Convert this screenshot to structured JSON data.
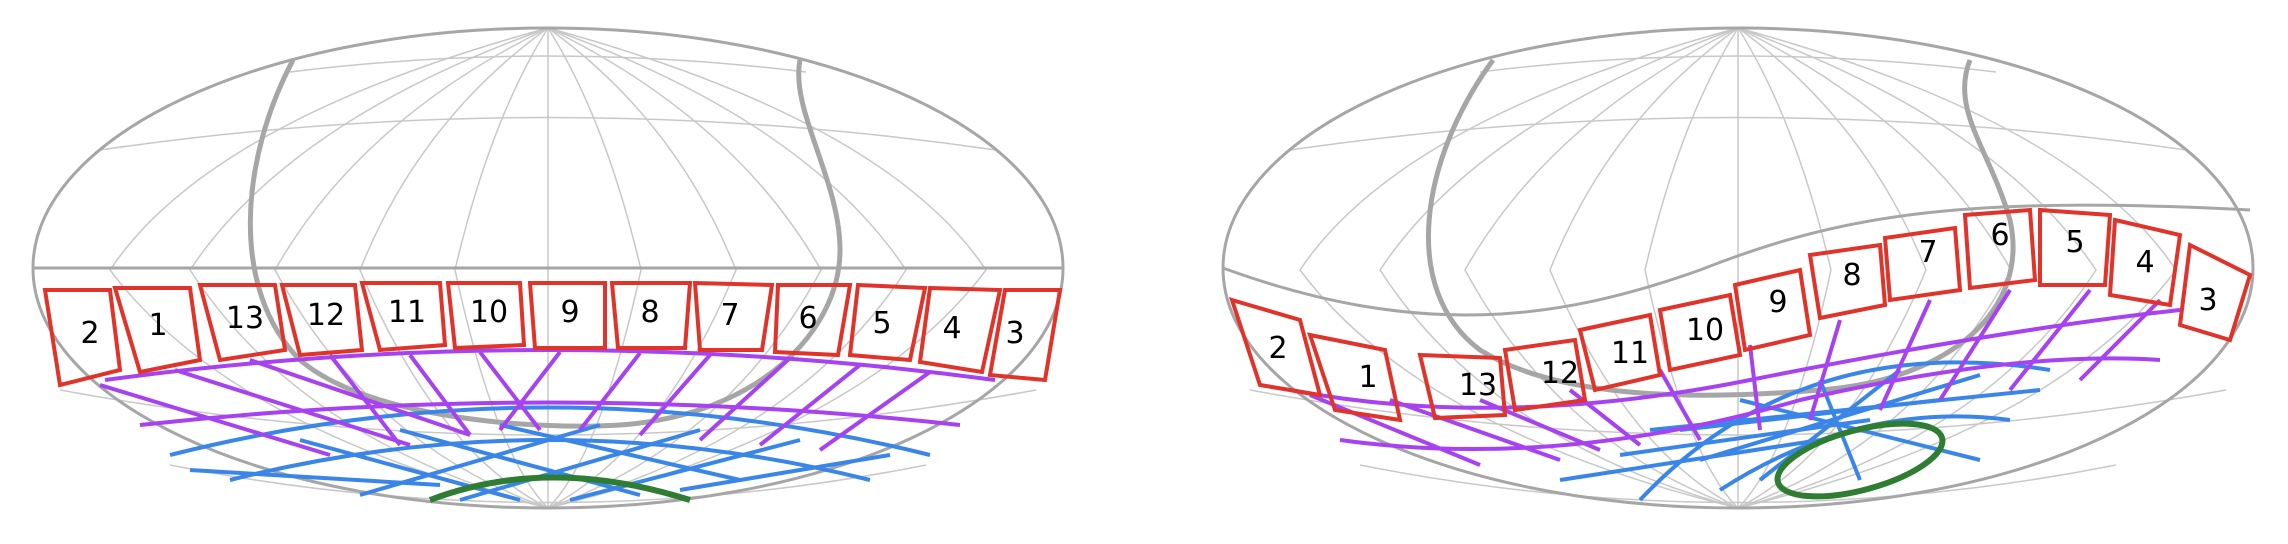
{
  "panels": [
    {
      "id": "left",
      "tile_numbers": [
        "2",
        "1",
        "13",
        "12",
        "11",
        "10",
        "9",
        "8",
        "7",
        "6",
        "5",
        "4",
        "3"
      ]
    },
    {
      "id": "right",
      "tile_numbers": [
        "2",
        "1",
        "13",
        "12",
        "11",
        "10",
        "9",
        "8",
        "7",
        "6",
        "5",
        "4",
        "3"
      ]
    }
  ],
  "colors": {
    "frame": "#a6a6a6",
    "grid": "#c8c8c8",
    "outer_ring": "#e0332a",
    "ring_2": "#a642ef",
    "ring_3": "#3a86e8",
    "inner_ring": "#2f7d32"
  }
}
